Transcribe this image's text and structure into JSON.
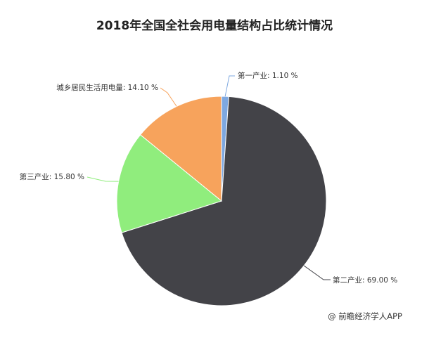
{
  "chart_data": {
    "type": "pie",
    "title": "2018年全国全社会用电量结构占比统计情况",
    "slices": [
      {
        "label": "第一产业",
        "value": 1.1,
        "display": "第一产业: 1.10 %",
        "color": "#7ea8e0"
      },
      {
        "label": "第二产业",
        "value": 69.0,
        "display": "第二产业: 69.00 %",
        "color": "#434348"
      },
      {
        "label": "第三产业",
        "value": 15.8,
        "display": "第三产业: 15.80 %",
        "color": "#90ed7d"
      },
      {
        "label": "城乡居民生活用电量",
        "value": 14.1,
        "display": "城乡居民生活用电量: 14.10 %",
        "color": "#f7a35c"
      }
    ]
  },
  "source": "@ 前瞻经济学人APP"
}
